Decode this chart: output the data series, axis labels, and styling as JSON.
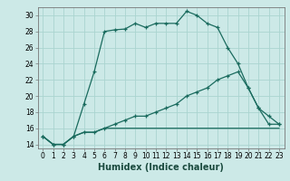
{
  "title": "",
  "xlabel": "Humidex (Indice chaleur)",
  "bg_color": "#cce9e7",
  "line_color": "#1a6b5e",
  "grid_color": "#aad4d0",
  "xlim": [
    -0.5,
    23.5
  ],
  "ylim": [
    13.5,
    31.0
  ],
  "yticks": [
    14,
    16,
    18,
    20,
    22,
    24,
    26,
    28,
    30
  ],
  "xticks": [
    0,
    1,
    2,
    3,
    4,
    5,
    6,
    7,
    8,
    9,
    10,
    11,
    12,
    13,
    14,
    15,
    16,
    17,
    18,
    19,
    20,
    21,
    22,
    23
  ],
  "series1_x": [
    0,
    1,
    2,
    3,
    4,
    5,
    6,
    7,
    8,
    9,
    10,
    11,
    12,
    13,
    14,
    15,
    16,
    17,
    18,
    19,
    20,
    21,
    22,
    23
  ],
  "series1_y": [
    15,
    14,
    14,
    15,
    19,
    23,
    28,
    28.2,
    28.3,
    29,
    28.5,
    29,
    29,
    29,
    30.5,
    30,
    29,
    28.5,
    26,
    24,
    21,
    18.5,
    17.5,
    16.5
  ],
  "series2_x": [
    0,
    1,
    2,
    3,
    4,
    5,
    6,
    7,
    8,
    9,
    10,
    11,
    12,
    13,
    14,
    15,
    16,
    17,
    18,
    19,
    20,
    21,
    22,
    23
  ],
  "series2_y": [
    15,
    14,
    14,
    15,
    15.5,
    15.5,
    16,
    16,
    16,
    16,
    16,
    16,
    16,
    16,
    16,
    16,
    16,
    16,
    16,
    16,
    16,
    16,
    16,
    16
  ],
  "series3_x": [
    0,
    1,
    2,
    3,
    4,
    5,
    6,
    7,
    8,
    9,
    10,
    11,
    12,
    13,
    14,
    15,
    16,
    17,
    18,
    19,
    20,
    21,
    22,
    23
  ],
  "series3_y": [
    15,
    14,
    14,
    15,
    15.5,
    15.5,
    16,
    16.5,
    17,
    17.5,
    17.5,
    18,
    18.5,
    19,
    20,
    20.5,
    21,
    22,
    22.5,
    23,
    21,
    18.5,
    16.5,
    16.5
  ],
  "tick_fontsize": 5.5,
  "xlabel_fontsize": 7
}
